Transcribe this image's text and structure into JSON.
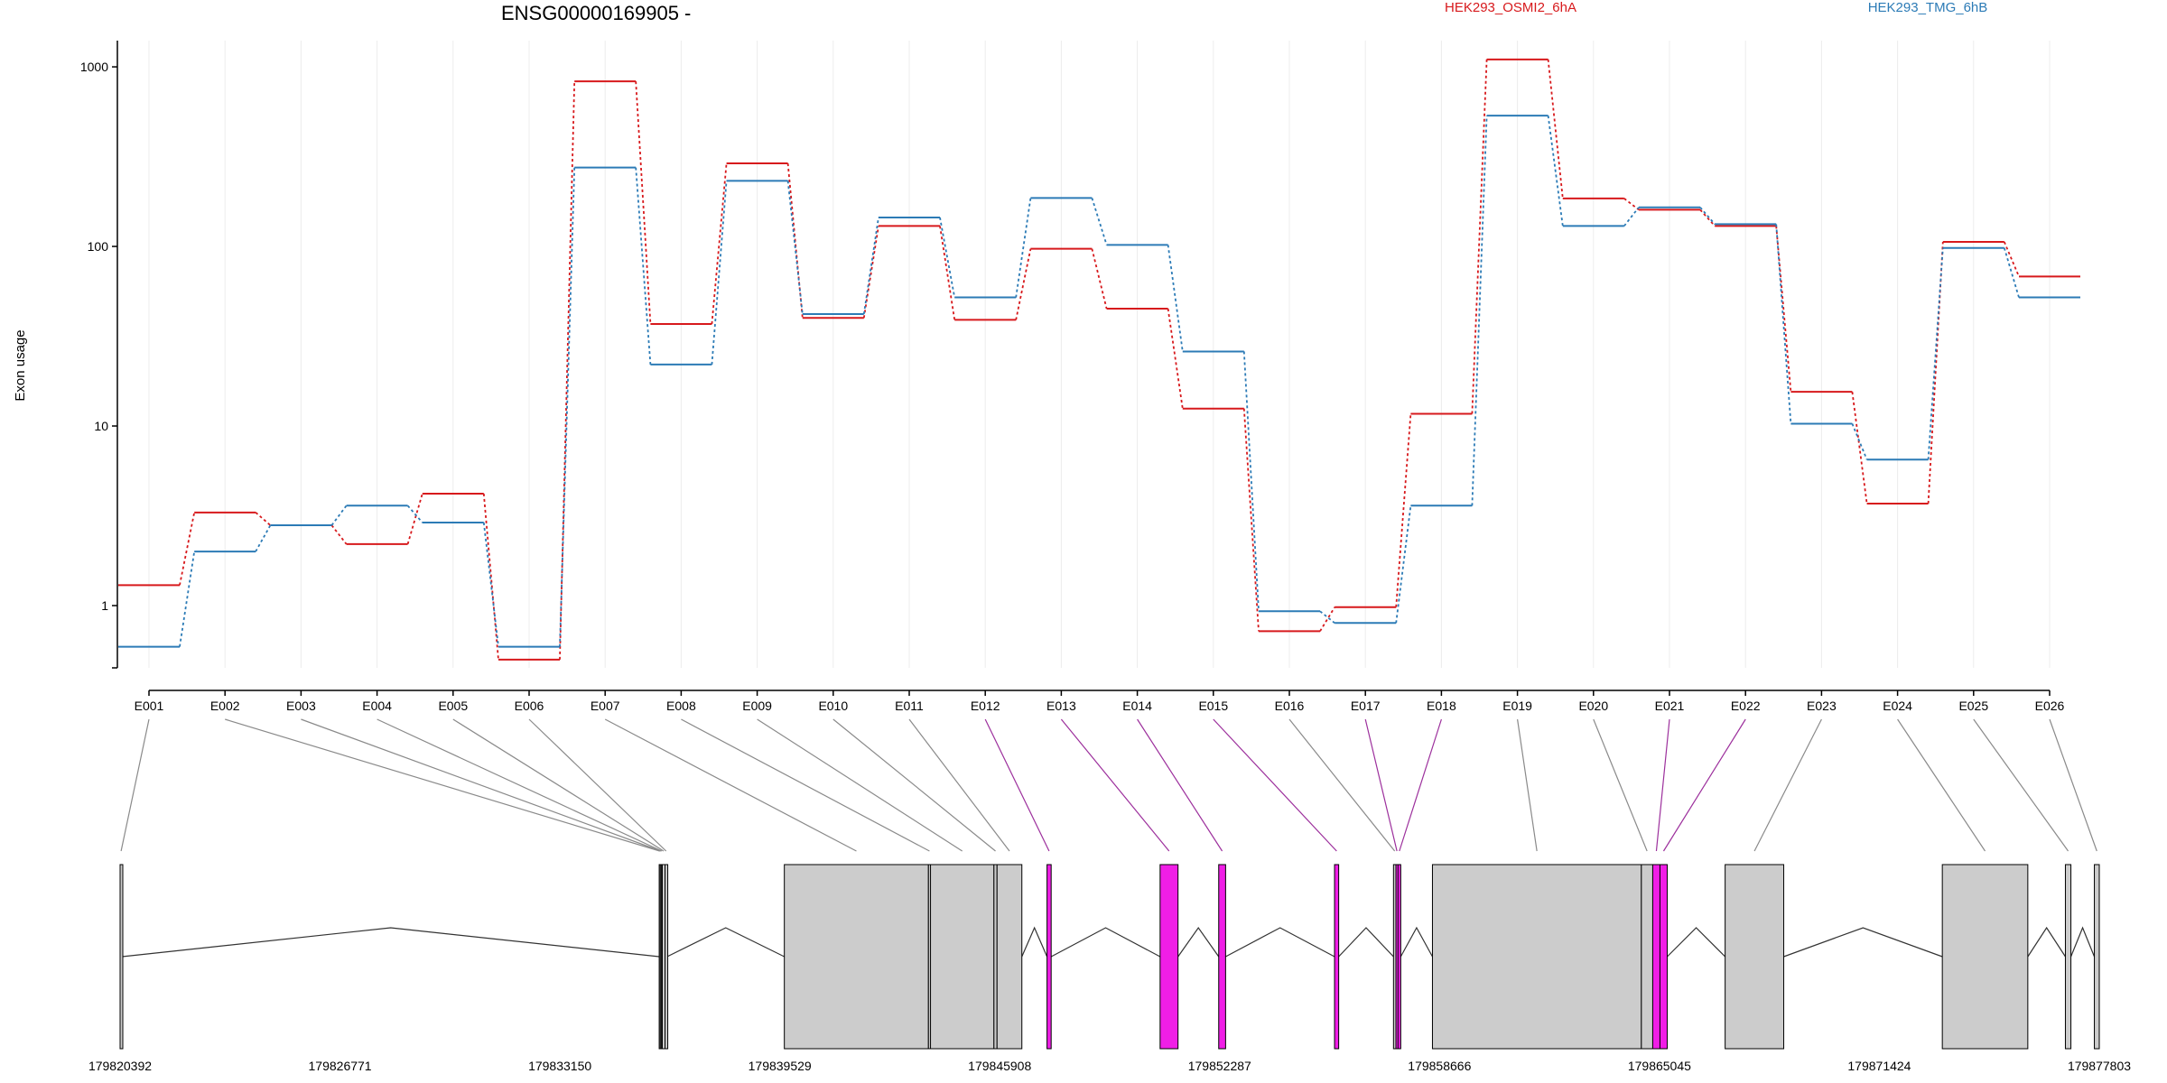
{
  "chart_data": {
    "type": "line",
    "title": "ENSG00000169905 -",
    "ylabel": "Exon usage",
    "yscale": "log",
    "ylim": [
      0.45,
      1400
    ],
    "yticks": [
      1,
      10,
      100,
      1000
    ],
    "ytick_labels": [
      "1",
      "10",
      "100",
      "1000"
    ],
    "categories": [
      "E001",
      "E002",
      "E003",
      "E004",
      "E005",
      "E006",
      "E007",
      "E008",
      "E009",
      "E010",
      "E011",
      "E012",
      "E013",
      "E014",
      "E015",
      "E016",
      "E017",
      "E018",
      "E019",
      "E020",
      "E021",
      "E022",
      "E023",
      "E024",
      "E025",
      "E026"
    ],
    "series": [
      {
        "name": "HEK293_OSMI2_6hA",
        "color": "#d7191c",
        "values": [
          1.3,
          3.3,
          2.8,
          2.2,
          4.2,
          0.5,
          830,
          37,
          290,
          40,
          130,
          39,
          97,
          45,
          12.5,
          0.72,
          0.98,
          11.7,
          1100,
          185,
          160,
          130,
          15.5,
          3.7,
          106,
          68
        ]
      },
      {
        "name": "HEK293_TMG_6hB",
        "color": "#2c7bb6",
        "values": [
          0.59,
          2.0,
          2.8,
          3.6,
          2.9,
          0.59,
          275,
          22,
          232,
          42,
          145,
          52,
          186,
          102,
          26,
          0.93,
          0.8,
          3.6,
          535,
          130,
          165,
          133,
          10.3,
          6.5,
          98,
          52
        ]
      }
    ],
    "gene_model": {
      "coordinate_labels": [
        "179820392",
        "179826771",
        "179833150",
        "179839529",
        "179845908",
        "179852287",
        "179858666",
        "179865045",
        "179871424",
        "179877803"
      ],
      "coord_min": 179820392,
      "coord_max": 179877803,
      "highlight_color": "#f01ee6",
      "exon_color": "#cccccc",
      "exons": [
        {
          "id": "E001",
          "start": 179820392,
          "end": 179820450,
          "highlight": false
        },
        {
          "id": "E002",
          "start": 179836030,
          "end": 179836060,
          "highlight": false
        },
        {
          "id": "E003",
          "start": 179836060,
          "end": 179836090,
          "highlight": false
        },
        {
          "id": "E004",
          "start": 179836090,
          "end": 179836120,
          "highlight": false
        },
        {
          "id": "E005",
          "start": 179836120,
          "end": 179836200,
          "highlight": false
        },
        {
          "id": "E006",
          "start": 179836200,
          "end": 179836260,
          "highlight": false
        },
        {
          "id": "E007",
          "start": 179839660,
          "end": 179843840,
          "highlight": false
        },
        {
          "id": "E008",
          "start": 179843840,
          "end": 179843900,
          "highlight": false
        },
        {
          "id": "E009",
          "start": 179843900,
          "end": 179845740,
          "highlight": false
        },
        {
          "id": "E010",
          "start": 179845740,
          "end": 179845830,
          "highlight": false
        },
        {
          "id": "E011",
          "start": 179845830,
          "end": 179846550,
          "highlight": false
        },
        {
          "id": "E012",
          "start": 179847280,
          "end": 179847400,
          "highlight": true
        },
        {
          "id": "E013",
          "start": 179850560,
          "end": 179851080,
          "highlight": true
        },
        {
          "id": "E014",
          "start": 179852260,
          "end": 179852460,
          "highlight": true
        },
        {
          "id": "E015",
          "start": 179855620,
          "end": 179855740,
          "highlight": true
        },
        {
          "id": "E016",
          "start": 179857330,
          "end": 179857400,
          "highlight": false
        },
        {
          "id": "E017",
          "start": 179857400,
          "end": 179857460,
          "highlight": true
        },
        {
          "id": "E018",
          "start": 179857460,
          "end": 179857540,
          "highlight": true
        },
        {
          "id": "E019",
          "start": 179858460,
          "end": 179864520,
          "highlight": false
        },
        {
          "id": "E020",
          "start": 179864520,
          "end": 179864850,
          "highlight": false
        },
        {
          "id": "E021",
          "start": 179864850,
          "end": 179865060,
          "highlight": true
        },
        {
          "id": "E022",
          "start": 179865060,
          "end": 179865270,
          "highlight": true
        },
        {
          "id": "E023",
          "start": 179866950,
          "end": 179868650,
          "highlight": false
        },
        {
          "id": "E024",
          "start": 179873250,
          "end": 179875730,
          "highlight": false
        },
        {
          "id": "E025",
          "start": 179876820,
          "end": 179876980,
          "highlight": false
        },
        {
          "id": "E026",
          "start": 179877660,
          "end": 179877803,
          "highlight": false
        }
      ]
    }
  }
}
